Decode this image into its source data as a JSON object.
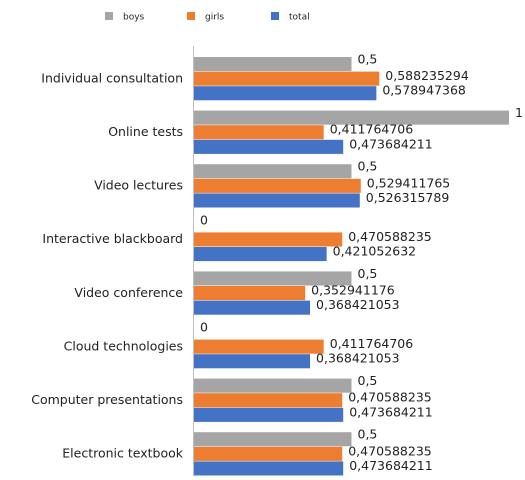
{
  "chart_data": {
    "type": "bar",
    "orientation": "horizontal",
    "categories": [
      "Individual consultation",
      "Online tests",
      "Video lectures",
      "Interactive blackboard",
      "Video conference",
      "Cloud technologies",
      "Computer presentations",
      "Electronic textbook"
    ],
    "series": [
      {
        "name": "boys",
        "color": "#a5a5a5",
        "values": [
          0.5,
          1,
          0.5,
          0,
          0.5,
          0,
          0.5,
          0.5
        ],
        "value_labels": [
          "0,5",
          "1",
          "0,5",
          "0",
          "0,5",
          "0",
          "0,5",
          "0,5"
        ]
      },
      {
        "name": "girls",
        "color": "#ed7d31",
        "values": [
          0.588235294,
          0.411764706,
          0.529411765,
          0.470588235,
          0.352941176,
          0.411764706,
          0.470588235,
          0.470588235
        ],
        "value_labels": [
          "0,588235294",
          "0,411764706",
          "0,529411765",
          "0,470588235",
          "0,352941176",
          "0,411764706",
          "0,470588235",
          "0,470588235"
        ]
      },
      {
        "name": "total",
        "color": "#4472c4",
        "values": [
          0.578947368,
          0.473684211,
          0.526315789,
          0.421052632,
          0.368421053,
          0.368421053,
          0.473684211,
          0.473684211
        ],
        "value_labels": [
          "0,578947368",
          "0,473684211",
          "0,526315789",
          "0,421052632",
          "0,368421053",
          "0,368421053",
          "0,473684211",
          "0,473684211"
        ]
      }
    ],
    "xlim": [
      0,
      1
    ],
    "legend": "top"
  }
}
